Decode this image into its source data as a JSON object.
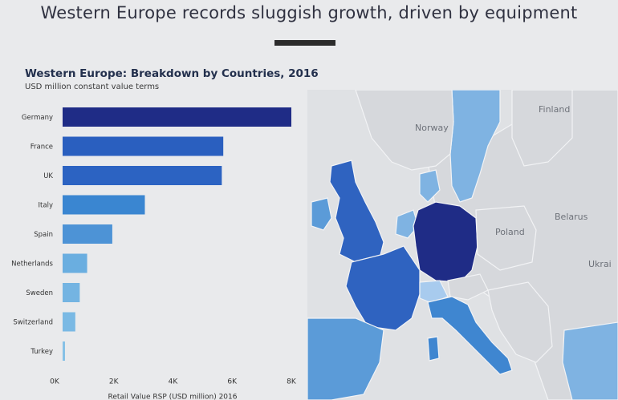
{
  "slide": {
    "title": "Western Europe records sluggish growth, driven by equipment"
  },
  "chart_data": {
    "type": "bar",
    "orientation": "horizontal",
    "title": "Western Europe: Breakdown by Countries, 2016",
    "subtitle": "USD million constant value terms",
    "categories": [
      "Germany",
      "France",
      "UK",
      "Italy",
      "Spain",
      "Netherlands",
      "Sweden",
      "Switzerland",
      "Turkey"
    ],
    "values": [
      8000,
      5700,
      5650,
      3050,
      1950,
      1100,
      850,
      700,
      150
    ],
    "bar_colors": [
      "#1f2c86",
      "#2a5fbf",
      "#2c63c2",
      "#3a86d1",
      "#4d93d6",
      "#6aaee0",
      "#74b4e2",
      "#7ab9e4",
      "#86c1e6"
    ],
    "xlim": [
      0,
      8000
    ],
    "x_ticks": [
      0,
      2000,
      4000,
      6000,
      8000
    ],
    "x_tick_labels": [
      "0K",
      "2K",
      "4K",
      "6K",
      "8K"
    ],
    "xlabel": "Retail Value RSP (USD million) 2016",
    "ylabel": "",
    "grid": false,
    "legend": "none"
  },
  "map": {
    "labels": {
      "finland": "Finland",
      "norway": "Norway",
      "poland": "Poland",
      "belarus": "Belarus",
      "ukraine": "Ukrai"
    },
    "colors": {
      "land_other": "#d6d8dc",
      "sea": "#dfe1e4",
      "germany": "#1f2c86",
      "france_uk": "#2f63c0",
      "italy": "#3f86d0",
      "spain": "#5b9bd8",
      "light": "#7fb3e2",
      "lightest": "#a8cbee"
    }
  }
}
